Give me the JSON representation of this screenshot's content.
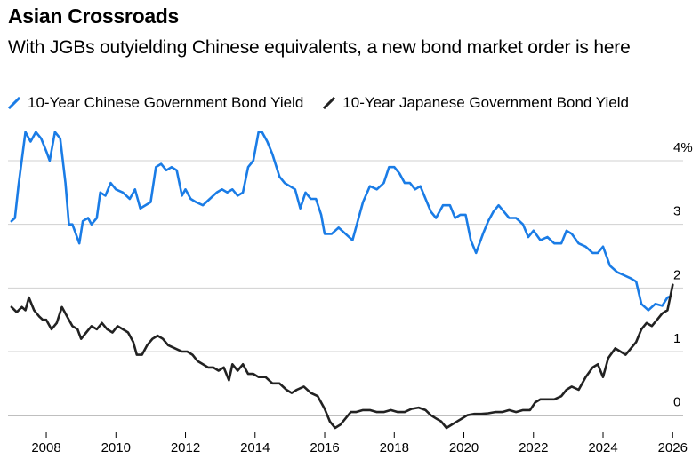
{
  "title": "Asian Crossroads",
  "subtitle": "With JGBs outyielding Chinese equivalents, a new bond market order is here",
  "chart_data": {
    "type": "line",
    "title": "Asian Crossroads",
    "subtitle": "With JGBs outyielding Chinese equivalents, a new bond market order is here",
    "xlabel": "",
    "ylabel": "",
    "xlim": [
      2006.9,
      2026.3
    ],
    "ylim": [
      -0.2,
      4.6
    ],
    "grid": true,
    "legend_position": "top",
    "x_ticks": [
      2008,
      2010,
      2012,
      2014,
      2016,
      2018,
      2020,
      2022,
      2024,
      2026
    ],
    "x_tick_labels": [
      "2008",
      "2010",
      "2012",
      "2014",
      "2016",
      "2018",
      "2020",
      "2022",
      "2024",
      "2026"
    ],
    "y_ticks": [
      0,
      1,
      2,
      3,
      4
    ],
    "y_tick_labels": [
      "0",
      "1",
      "2",
      "3",
      "4%"
    ],
    "series": [
      {
        "name": "10-Year Chinese Government Bond Yield",
        "color": "#1a7ce6",
        "x": [
          2007.0,
          2007.1,
          2007.2,
          2007.4,
          2007.55,
          2007.7,
          2007.85,
          2008.0,
          2008.1,
          2008.25,
          2008.4,
          2008.55,
          2008.65,
          2008.75,
          2008.85,
          2008.95,
          2009.05,
          2009.2,
          2009.3,
          2009.45,
          2009.55,
          2009.7,
          2009.85,
          2010.0,
          2010.2,
          2010.4,
          2010.55,
          2010.7,
          2010.85,
          2011.0,
          2011.15,
          2011.3,
          2011.45,
          2011.6,
          2011.75,
          2011.9,
          2012.0,
          2012.15,
          2012.3,
          2012.5,
          2012.7,
          2012.9,
          2013.05,
          2013.2,
          2013.35,
          2013.5,
          2013.65,
          2013.8,
          2013.95,
          2014.1,
          2014.2,
          2014.35,
          2014.5,
          2014.7,
          2014.85,
          2015.0,
          2015.15,
          2015.3,
          2015.45,
          2015.6,
          2015.75,
          2015.9,
          2016.0,
          2016.2,
          2016.4,
          2016.6,
          2016.8,
          2016.95,
          2017.1,
          2017.3,
          2017.5,
          2017.7,
          2017.85,
          2018.0,
          2018.15,
          2018.3,
          2018.45,
          2018.6,
          2018.75,
          2018.9,
          2019.05,
          2019.2,
          2019.4,
          2019.6,
          2019.75,
          2019.9,
          2020.05,
          2020.2,
          2020.35,
          2020.55,
          2020.7,
          2020.85,
          2021.0,
          2021.15,
          2021.3,
          2021.5,
          2021.7,
          2021.85,
          2022.0,
          2022.2,
          2022.4,
          2022.6,
          2022.8,
          2022.95,
          2023.1,
          2023.3,
          2023.5,
          2023.7,
          2023.85,
          2024.0,
          2024.2,
          2024.4,
          2024.6,
          2024.8,
          2024.95,
          2025.1,
          2025.3,
          2025.5,
          2025.7,
          2025.85,
          2025.95
        ],
        "values": [
          3.05,
          3.1,
          3.6,
          4.45,
          4.3,
          4.45,
          4.35,
          4.15,
          4.0,
          4.45,
          4.35,
          3.65,
          3.0,
          3.0,
          2.85,
          2.7,
          3.05,
          3.1,
          3.0,
          3.1,
          3.5,
          3.45,
          3.65,
          3.55,
          3.5,
          3.4,
          3.55,
          3.25,
          3.3,
          3.35,
          3.9,
          3.95,
          3.85,
          3.9,
          3.85,
          3.45,
          3.55,
          3.4,
          3.35,
          3.3,
          3.4,
          3.5,
          3.55,
          3.5,
          3.55,
          3.45,
          3.5,
          3.9,
          4.0,
          4.45,
          4.45,
          4.3,
          4.1,
          3.75,
          3.65,
          3.6,
          3.55,
          3.25,
          3.5,
          3.4,
          3.4,
          3.15,
          2.85,
          2.85,
          2.95,
          2.85,
          2.75,
          3.05,
          3.35,
          3.6,
          3.55,
          3.65,
          3.9,
          3.9,
          3.8,
          3.65,
          3.65,
          3.55,
          3.6,
          3.4,
          3.2,
          3.1,
          3.3,
          3.3,
          3.1,
          3.15,
          3.15,
          2.75,
          2.55,
          2.85,
          3.05,
          3.2,
          3.3,
          3.2,
          3.1,
          3.1,
          3.0,
          2.8,
          2.9,
          2.75,
          2.8,
          2.7,
          2.7,
          2.9,
          2.85,
          2.7,
          2.65,
          2.55,
          2.55,
          2.65,
          2.35,
          2.25,
          2.2,
          2.15,
          2.1,
          1.75,
          1.65,
          1.75,
          1.72,
          1.85,
          1.87
        ]
      },
      {
        "name": "10-Year Japanese Government Bond Yield",
        "color": "#222222",
        "x": [
          2007.0,
          2007.15,
          2007.3,
          2007.4,
          2007.5,
          2007.65,
          2007.8,
          2007.9,
          2008.0,
          2008.15,
          2008.3,
          2008.45,
          2008.6,
          2008.75,
          2008.9,
          2009.0,
          2009.15,
          2009.3,
          2009.45,
          2009.6,
          2009.75,
          2009.9,
          2010.05,
          2010.2,
          2010.35,
          2010.5,
          2010.6,
          2010.75,
          2010.9,
          2011.05,
          2011.2,
          2011.35,
          2011.5,
          2011.7,
          2011.9,
          2012.05,
          2012.2,
          2012.35,
          2012.5,
          2012.65,
          2012.8,
          2012.95,
          2013.1,
          2013.25,
          2013.35,
          2013.5,
          2013.65,
          2013.8,
          2013.95,
          2014.1,
          2014.3,
          2014.5,
          2014.7,
          2014.9,
          2015.05,
          2015.2,
          2015.4,
          2015.6,
          2015.8,
          2016.0,
          2016.15,
          2016.3,
          2016.45,
          2016.6,
          2016.75,
          2016.9,
          2017.1,
          2017.3,
          2017.5,
          2017.7,
          2017.9,
          2018.1,
          2018.3,
          2018.5,
          2018.7,
          2018.9,
          2019.05,
          2019.2,
          2019.35,
          2019.5,
          2019.65,
          2019.8,
          2019.95,
          2020.1,
          2020.3,
          2020.5,
          2020.7,
          2020.9,
          2021.1,
          2021.3,
          2021.5,
          2021.7,
          2021.9,
          2022.05,
          2022.2,
          2022.4,
          2022.6,
          2022.8,
          2022.95,
          2023.1,
          2023.3,
          2023.5,
          2023.7,
          2023.85,
          2024.0,
          2024.15,
          2024.35,
          2024.5,
          2024.65,
          2024.8,
          2024.95,
          2025.1,
          2025.25,
          2025.4,
          2025.55,
          2025.7,
          2025.85,
          2026.0
        ],
        "values": [
          1.7,
          1.62,
          1.7,
          1.65,
          1.85,
          1.65,
          1.55,
          1.5,
          1.5,
          1.35,
          1.45,
          1.7,
          1.55,
          1.4,
          1.35,
          1.2,
          1.3,
          1.4,
          1.35,
          1.45,
          1.35,
          1.3,
          1.4,
          1.35,
          1.3,
          1.15,
          0.95,
          0.95,
          1.1,
          1.2,
          1.25,
          1.2,
          1.1,
          1.05,
          1.0,
          1.0,
          0.95,
          0.85,
          0.8,
          0.75,
          0.75,
          0.7,
          0.75,
          0.55,
          0.8,
          0.7,
          0.8,
          0.65,
          0.65,
          0.6,
          0.6,
          0.5,
          0.5,
          0.4,
          0.35,
          0.4,
          0.45,
          0.35,
          0.3,
          0.1,
          -0.1,
          -0.2,
          -0.15,
          -0.05,
          0.05,
          0.05,
          0.08,
          0.08,
          0.05,
          0.05,
          0.08,
          0.05,
          0.05,
          0.1,
          0.12,
          0.08,
          0.0,
          -0.05,
          -0.1,
          -0.2,
          -0.15,
          -0.1,
          -0.05,
          0.0,
          0.02,
          0.02,
          0.03,
          0.05,
          0.05,
          0.08,
          0.05,
          0.08,
          0.08,
          0.2,
          0.25,
          0.25,
          0.25,
          0.3,
          0.4,
          0.45,
          0.4,
          0.6,
          0.75,
          0.8,
          0.6,
          0.9,
          1.05,
          1.0,
          0.95,
          1.05,
          1.15,
          1.35,
          1.45,
          1.4,
          1.5,
          1.6,
          1.65,
          2.05
        ]
      }
    ]
  }
}
